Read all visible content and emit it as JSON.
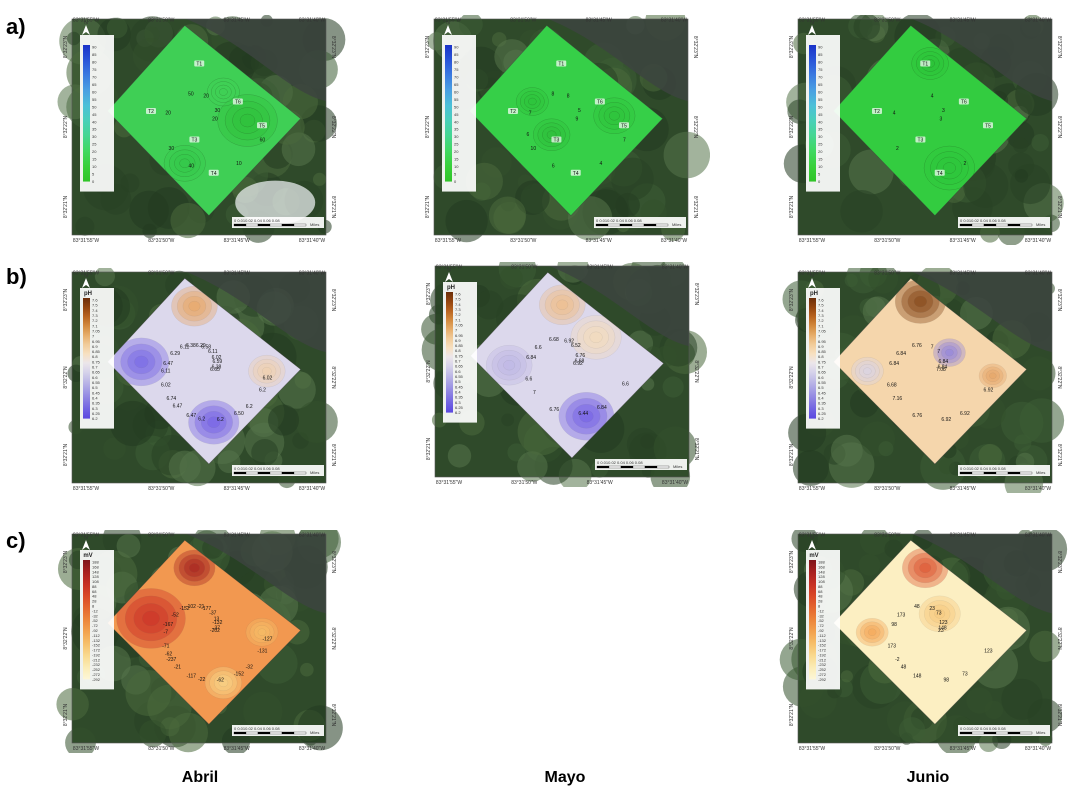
{
  "row_labels": [
    "a)",
    "b)",
    "c)"
  ],
  "col_labels": [
    "Abril",
    "Mayo",
    "Junio"
  ],
  "coords": {
    "lon": [
      "83°31'55\"W",
      "83°31'50\"W",
      "83°31'45\"W",
      "83°31'40\"W"
    ],
    "lat": [
      "8°32'23\"N",
      "8°32'22\"N",
      "8°32'21\"N"
    ]
  },
  "scale_bar": {
    "ticks": "0  0.010.02   0.04    0.06    0.08",
    "unit": "Miles"
  },
  "north": "N",
  "legends": {
    "do": {
      "title": "",
      "values": [
        "90",
        "85",
        "80",
        "75",
        "70",
        "65",
        "60",
        "55",
        "50",
        "45",
        "40",
        "35",
        "30",
        "25",
        "20",
        "15",
        "10",
        "5",
        "0"
      ]
    },
    "ph": {
      "title": "pH",
      "values": [
        "7.6",
        "7.5",
        "7.4",
        "7.3",
        "7.2",
        "7.1",
        "7.05",
        "7",
        "6.95",
        "6.9",
        "6.85",
        "6.8",
        "6.75",
        "6.7",
        "6.65",
        "6.6",
        "6.55",
        "6.5",
        "6.45",
        "6.4",
        "6.35",
        "6.3",
        "6.25",
        "6.2"
      ]
    },
    "mv": {
      "title": "mV",
      "values": [
        "188",
        "168",
        "148",
        "128",
        "108",
        "88",
        "68",
        "48",
        "28",
        "8",
        "-12",
        "-32",
        "-52",
        "-72",
        "-92",
        "-112",
        "-132",
        "-152",
        "-172",
        "-192",
        "-212",
        "-232",
        "-252",
        "-272",
        "-292"
      ]
    }
  },
  "stations": [
    "T1",
    "T2",
    "T3",
    "T4",
    "T5",
    "T6"
  ],
  "maps": {
    "a_abril": {
      "labels": [
        "20",
        "30",
        "20",
        "10",
        "20",
        "30",
        "40",
        "50",
        "60"
      ]
    },
    "a_mayo": {
      "labels": [
        "9",
        "10",
        "8",
        "4",
        "7",
        "5",
        "6",
        "8",
        "7",
        "6"
      ]
    },
    "a_junio": {
      "labels": [
        "3",
        "2",
        "4",
        "2",
        "4",
        "3"
      ]
    },
    "b_abril": {
      "labels": [
        "6.65",
        "6.74",
        "6.58",
        "6.50",
        "6.47",
        "6.59",
        "6.47",
        "6.38",
        "6.2",
        "6.02",
        "6.11",
        "6.2",
        "6.29",
        "6.38",
        "6.47",
        "6.29",
        "6.2",
        "6.11",
        "6.02",
        "6.2",
        "6.11",
        "6.02"
      ]
    },
    "b_mayo": {
      "labels": [
        "6.92",
        "7",
        "6.92",
        "6.84",
        "6.84",
        "6.76",
        "6.76",
        "6.68",
        "6.6",
        "6.6",
        "6.52",
        "6.44",
        "6.6",
        "6.68"
      ]
    },
    "b_junio": {
      "labels": [
        "7.08",
        "7.16",
        "7",
        "6.92",
        "6.84",
        "6.84",
        "6.76",
        "6.76",
        "6.92",
        "6.68",
        "7",
        "6.92",
        "6.84",
        "6.84"
      ]
    },
    "c_abril": {
      "labels": [
        "-202",
        "-237",
        "-177",
        "-152",
        "-167",
        "-132",
        "-117",
        "-102",
        "-131",
        "-71",
        "-37",
        "-62",
        "-52",
        "-37",
        "-21",
        "-21",
        "-32",
        "-7",
        "13",
        "-22",
        "-152",
        "-127",
        "-62"
      ]
    },
    "c_junio": {
      "labels": [
        "23",
        "-2",
        "23",
        "73",
        "98",
        "123",
        "148",
        "48",
        "123",
        "173",
        "73",
        "98",
        "173",
        "148",
        "48"
      ]
    }
  }
}
